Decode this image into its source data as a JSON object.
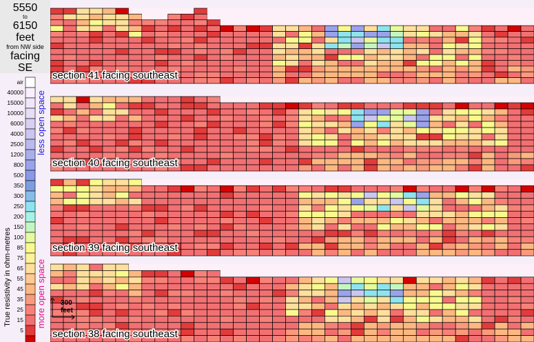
{
  "title": {
    "from": "5550",
    "to_word": "to",
    "to": "6150",
    "unit": "feet",
    "note": "from NW side",
    "facing_word": "facing",
    "direction": "SE"
  },
  "legend": {
    "axis_label": "True resistivity in ohm-metres",
    "less_label": "less open space",
    "more_label": "more open space",
    "levels": [
      {
        "label": "air",
        "color": "#ffffff"
      },
      {
        "label": "40000",
        "color": "#f8f0fc"
      },
      {
        "label": "15000",
        "color": "#f0e6fa"
      },
      {
        "label": "10000",
        "color": "#e6ddf6"
      },
      {
        "label": "6000",
        "color": "#d8d0f2"
      },
      {
        "label": "4000",
        "color": "#cbc6f0"
      },
      {
        "label": "2500",
        "color": "#bbbaee"
      },
      {
        "label": "1200",
        "color": "#abaeec"
      },
      {
        "label": "800",
        "color": "#9aa3ea"
      },
      {
        "label": "500",
        "color": "#8a98e8"
      },
      {
        "label": "350",
        "color": "#7c9ee0"
      },
      {
        "label": "300",
        "color": "#86bde8"
      },
      {
        "label": "250",
        "color": "#8ee4ee"
      },
      {
        "label": "200",
        "color": "#a6f2e4"
      },
      {
        "label": "150",
        "color": "#c4f6c2"
      },
      {
        "label": "100",
        "color": "#e6fa9e"
      },
      {
        "label": "85",
        "color": "#f8fa8e"
      },
      {
        "label": "75",
        "color": "#fef29a"
      },
      {
        "label": "65",
        "color": "#fee09c"
      },
      {
        "label": "55",
        "color": "#fec992"
      },
      {
        "label": "45",
        "color": "#fdb882"
      },
      {
        "label": "35",
        "color": "#fa9a7c"
      },
      {
        "label": "25",
        "color": "#f78178"
      },
      {
        "label": "15",
        "color": "#f27072"
      },
      {
        "label": "5",
        "color": "#e23b3b"
      },
      {
        "label": "",
        "color": "#d50000"
      }
    ]
  },
  "scale_bar": {
    "label_value": "300",
    "label_unit": "feet"
  },
  "sections": [
    {
      "label": "section 41 facing southeast"
    },
    {
      "label": "section 40 facing southeast"
    },
    {
      "label": "section 39 facing southeast"
    },
    {
      "label": "section 38 facing southeast"
    }
  ]
}
